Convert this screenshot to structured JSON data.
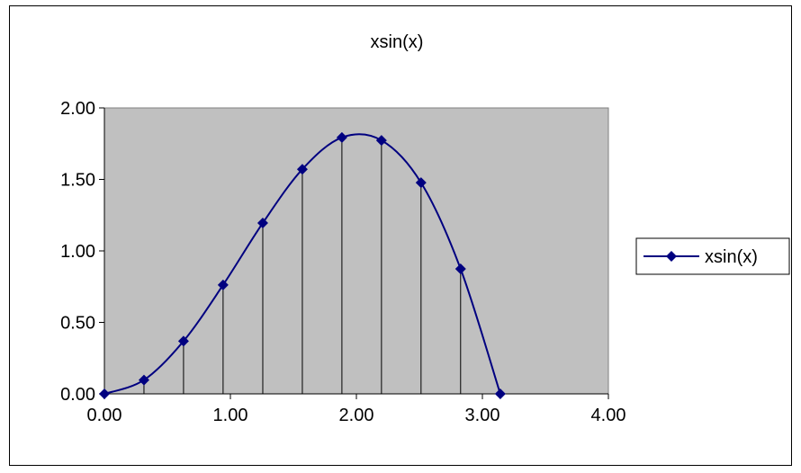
{
  "chart_data": {
    "type": "line",
    "title": "xsin(x)",
    "xlabel": "",
    "ylabel": "",
    "xlim": [
      0,
      4
    ],
    "ylim": [
      0,
      2
    ],
    "x_ticks": [
      "0.00",
      "1.00",
      "2.00",
      "3.00",
      "4.00"
    ],
    "y_ticks": [
      "0.00",
      "0.50",
      "1.00",
      "1.50",
      "2.00"
    ],
    "x_tick_values": [
      0,
      1,
      2,
      3,
      4
    ],
    "y_tick_values": [
      0,
      0.5,
      1,
      1.5,
      2
    ],
    "grid": false,
    "drop_lines": true,
    "legend_position": "right",
    "plot_background": "#c0c0c0",
    "series": [
      {
        "name": "xsin(x)",
        "color": "#000080",
        "marker": "diamond",
        "x": [
          0.0,
          0.314,
          0.628,
          0.942,
          1.257,
          1.571,
          1.885,
          2.199,
          2.513,
          2.827,
          3.142
        ],
        "y": [
          0.0,
          0.097,
          0.369,
          0.762,
          1.195,
          1.571,
          1.793,
          1.773,
          1.477,
          0.874,
          0.0
        ]
      }
    ]
  }
}
